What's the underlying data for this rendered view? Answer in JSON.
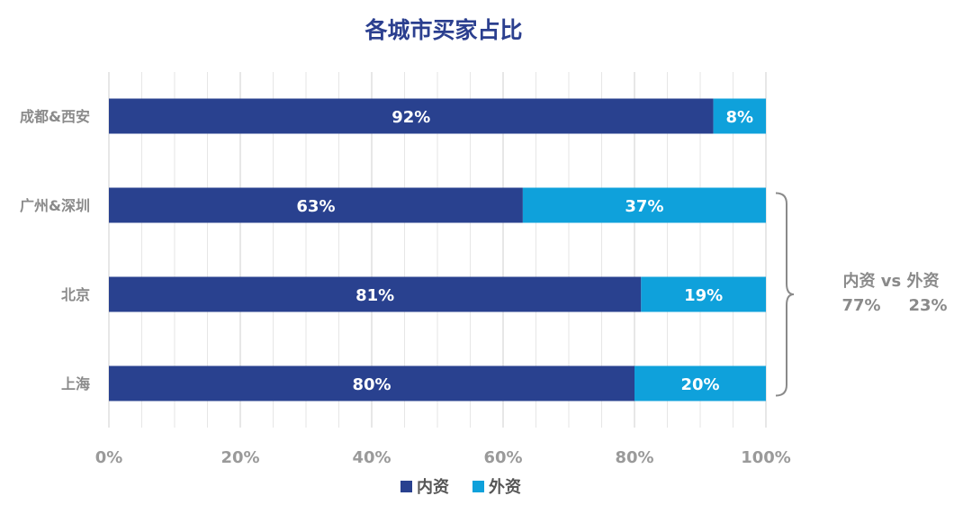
{
  "chart_data": {
    "type": "bar",
    "orientation": "horizontal",
    "stacked": true,
    "title": "各城市买家占比",
    "categories": [
      "成都&西安",
      "广州&深圳",
      "北京",
      "上海"
    ],
    "series": [
      {
        "name": "内资",
        "values": [
          92,
          63,
          81,
          80
        ],
        "labels": [
          "92%",
          "63%",
          "81%",
          "80%"
        ],
        "color": "#29418f"
      },
      {
        "name": "外资",
        "values": [
          8,
          37,
          19,
          20
        ],
        "labels": [
          "8%",
          "37%",
          "19%",
          "20%"
        ],
        "color": "#0fa1db"
      }
    ],
    "xlim": [
      0,
      100
    ],
    "x_ticks": [
      "0%",
      "20%",
      "40%",
      "60%",
      "80%",
      "100%"
    ],
    "grid": true,
    "legend_position": "bottom",
    "annotation": {
      "line1": "内资 vs 外资",
      "left_value": "77%",
      "right_value": "23%",
      "spans_categories": [
        "广州&深圳",
        "北京",
        "上海"
      ]
    }
  }
}
